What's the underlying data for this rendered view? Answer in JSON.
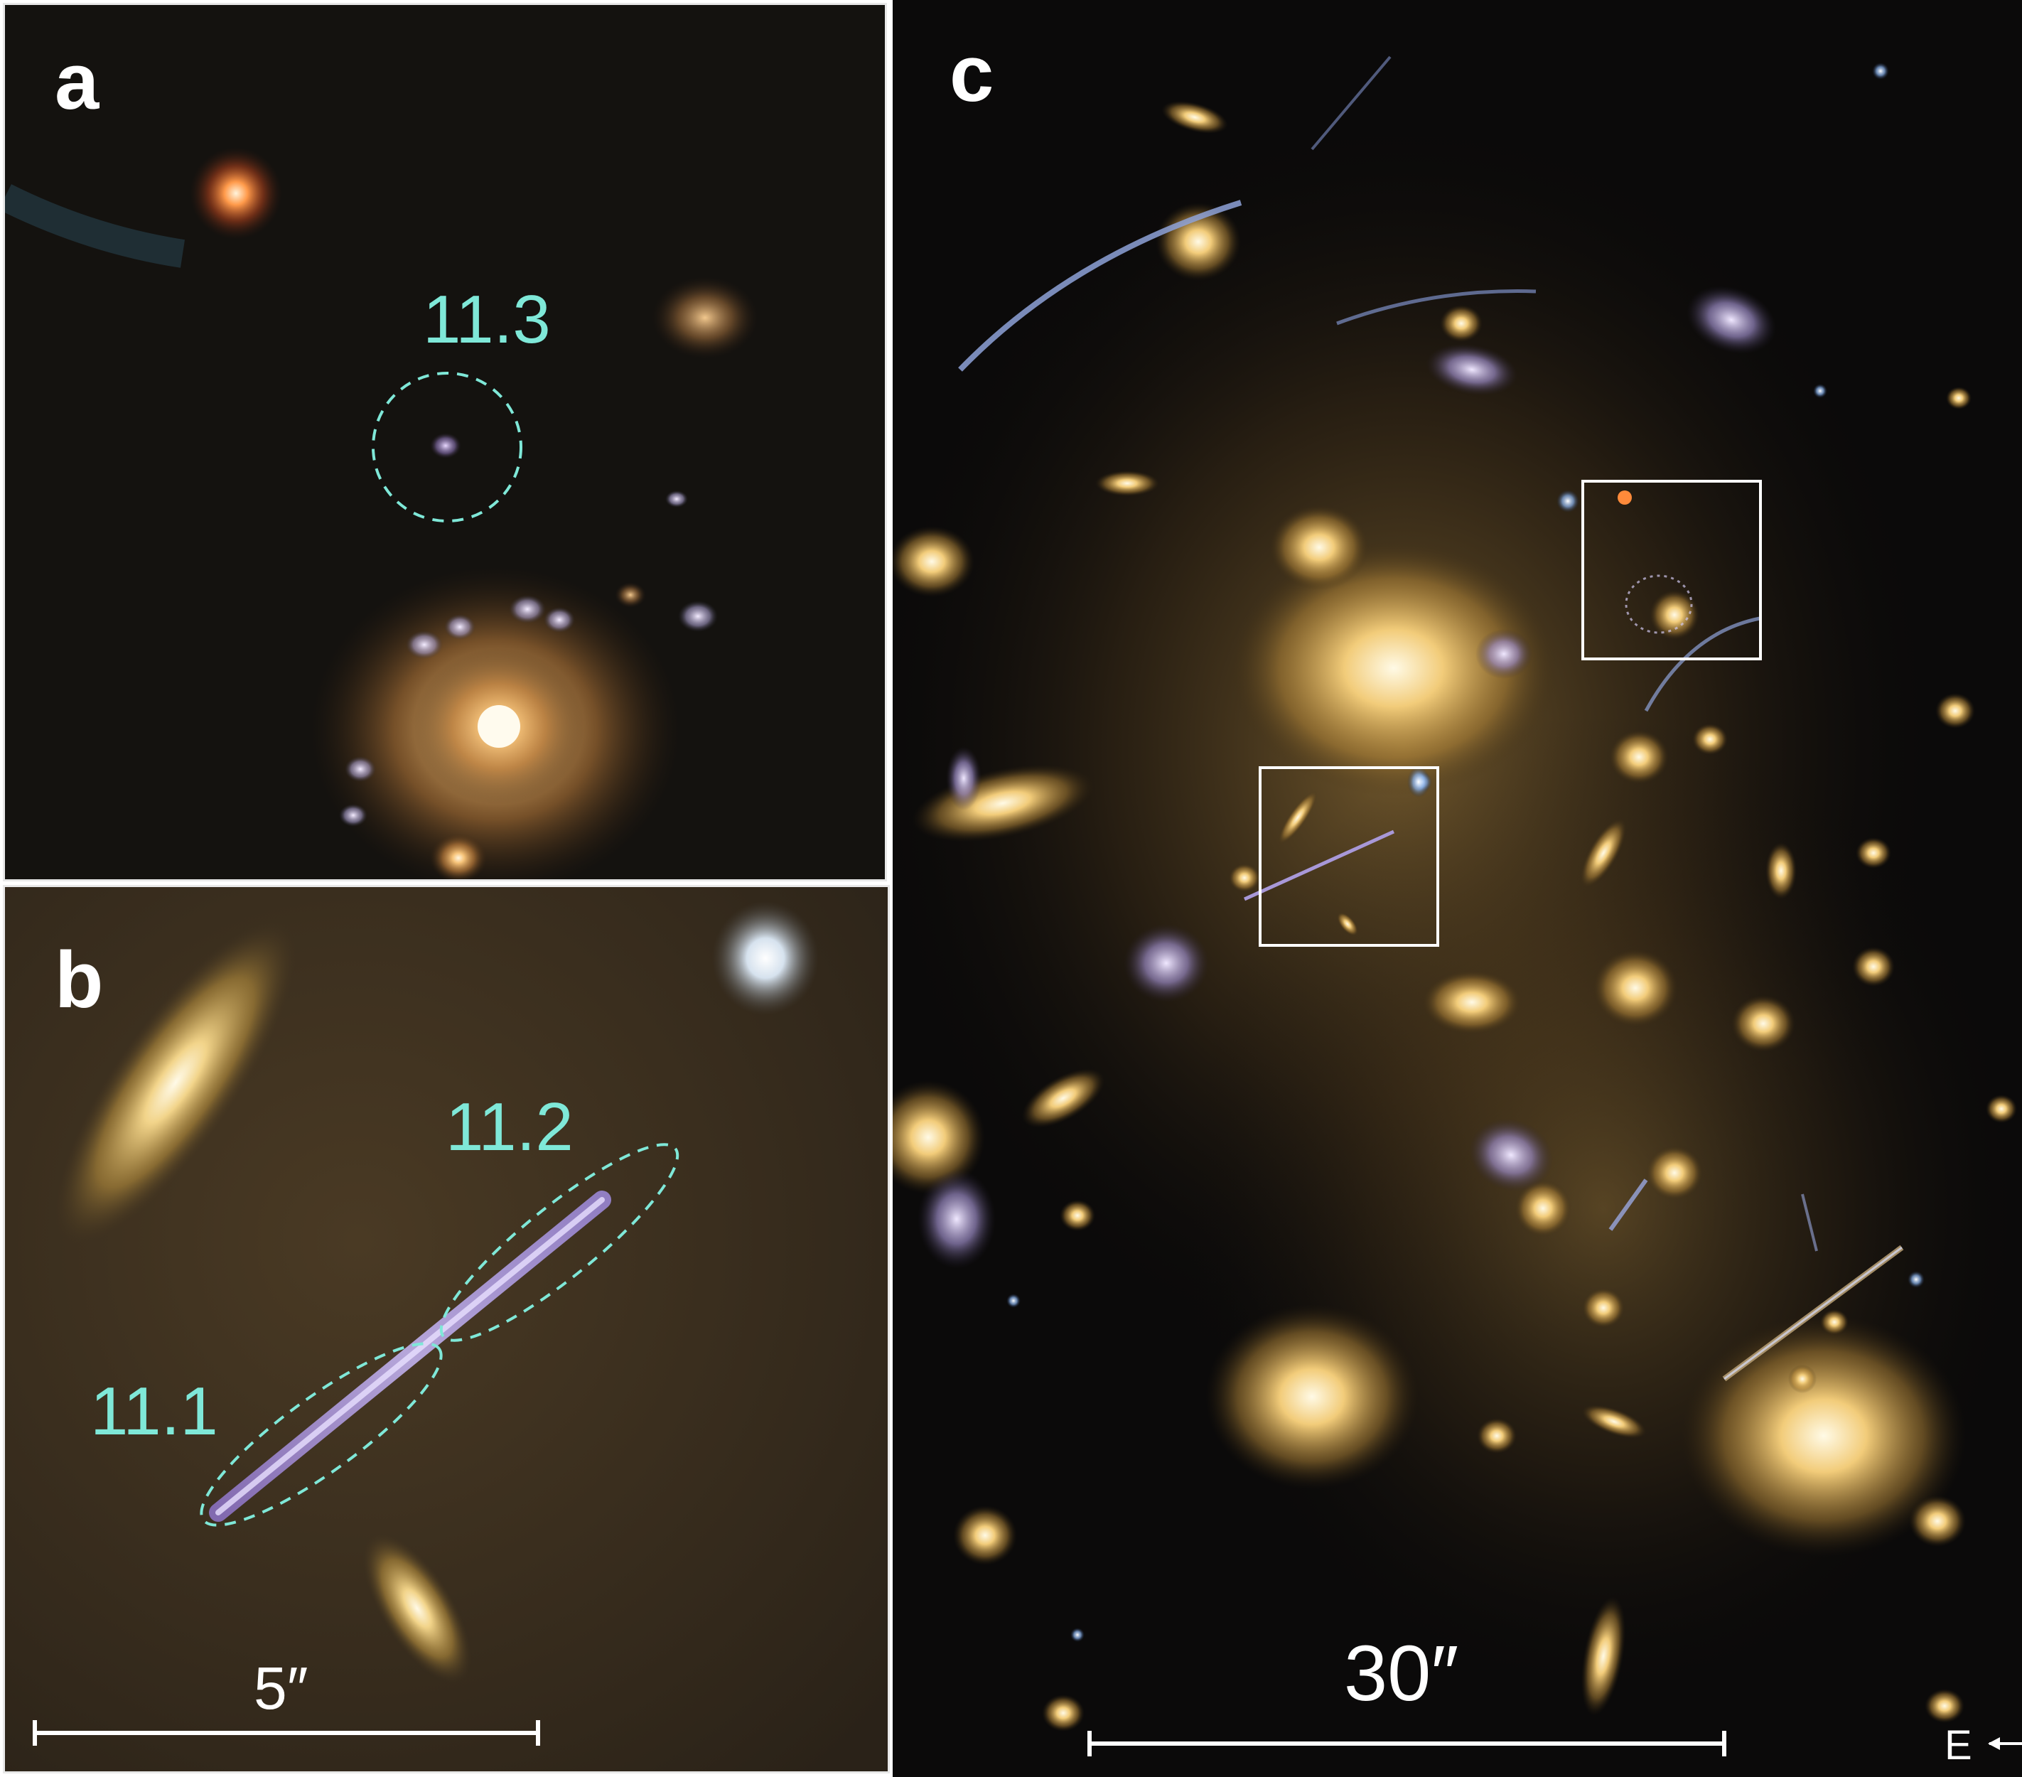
{
  "panels": {
    "a": {
      "label": "a",
      "annotation": "11.3"
    },
    "b": {
      "label": "b",
      "annotations": [
        "11.2",
        "11.1"
      ],
      "scale_bar": "5″"
    },
    "c": {
      "label": "c",
      "scale_bar": "30″",
      "compass": "E"
    }
  },
  "colors": {
    "annotation": "#7fe8d8",
    "label": "#ffffff",
    "background_sky": "#0b0a0a",
    "galaxy_glow": "#f2c66a"
  }
}
